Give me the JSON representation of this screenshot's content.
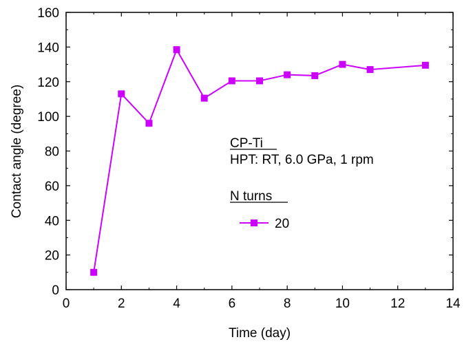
{
  "chart_data": {
    "type": "line",
    "title": "",
    "xlabel": "Time (day)",
    "ylabel": "Contact angle (degree)",
    "xlim": [
      0,
      14
    ],
    "ylim": [
      0,
      160
    ],
    "x_ticks": [
      0,
      2,
      4,
      6,
      8,
      10,
      12,
      14
    ],
    "y_ticks": [
      0,
      20,
      40,
      60,
      80,
      100,
      120,
      140,
      160
    ],
    "grid": false,
    "legend_position": "right",
    "series": [
      {
        "name": "20",
        "color": "#cc00ff",
        "marker": "square",
        "x": [
          1,
          2,
          3,
          4,
          5,
          6,
          7,
          8,
          9,
          10,
          11,
          13
        ],
        "y": [
          10,
          113,
          96,
          138.5,
          110.5,
          120.5,
          120.5,
          124,
          123.5,
          130,
          127,
          129.5
        ]
      }
    ],
    "annotations": {
      "material": "CP-Ti",
      "process": "HPT: RT, 6.0 GPa, 1 rpm",
      "legend_title": "N turns"
    }
  }
}
